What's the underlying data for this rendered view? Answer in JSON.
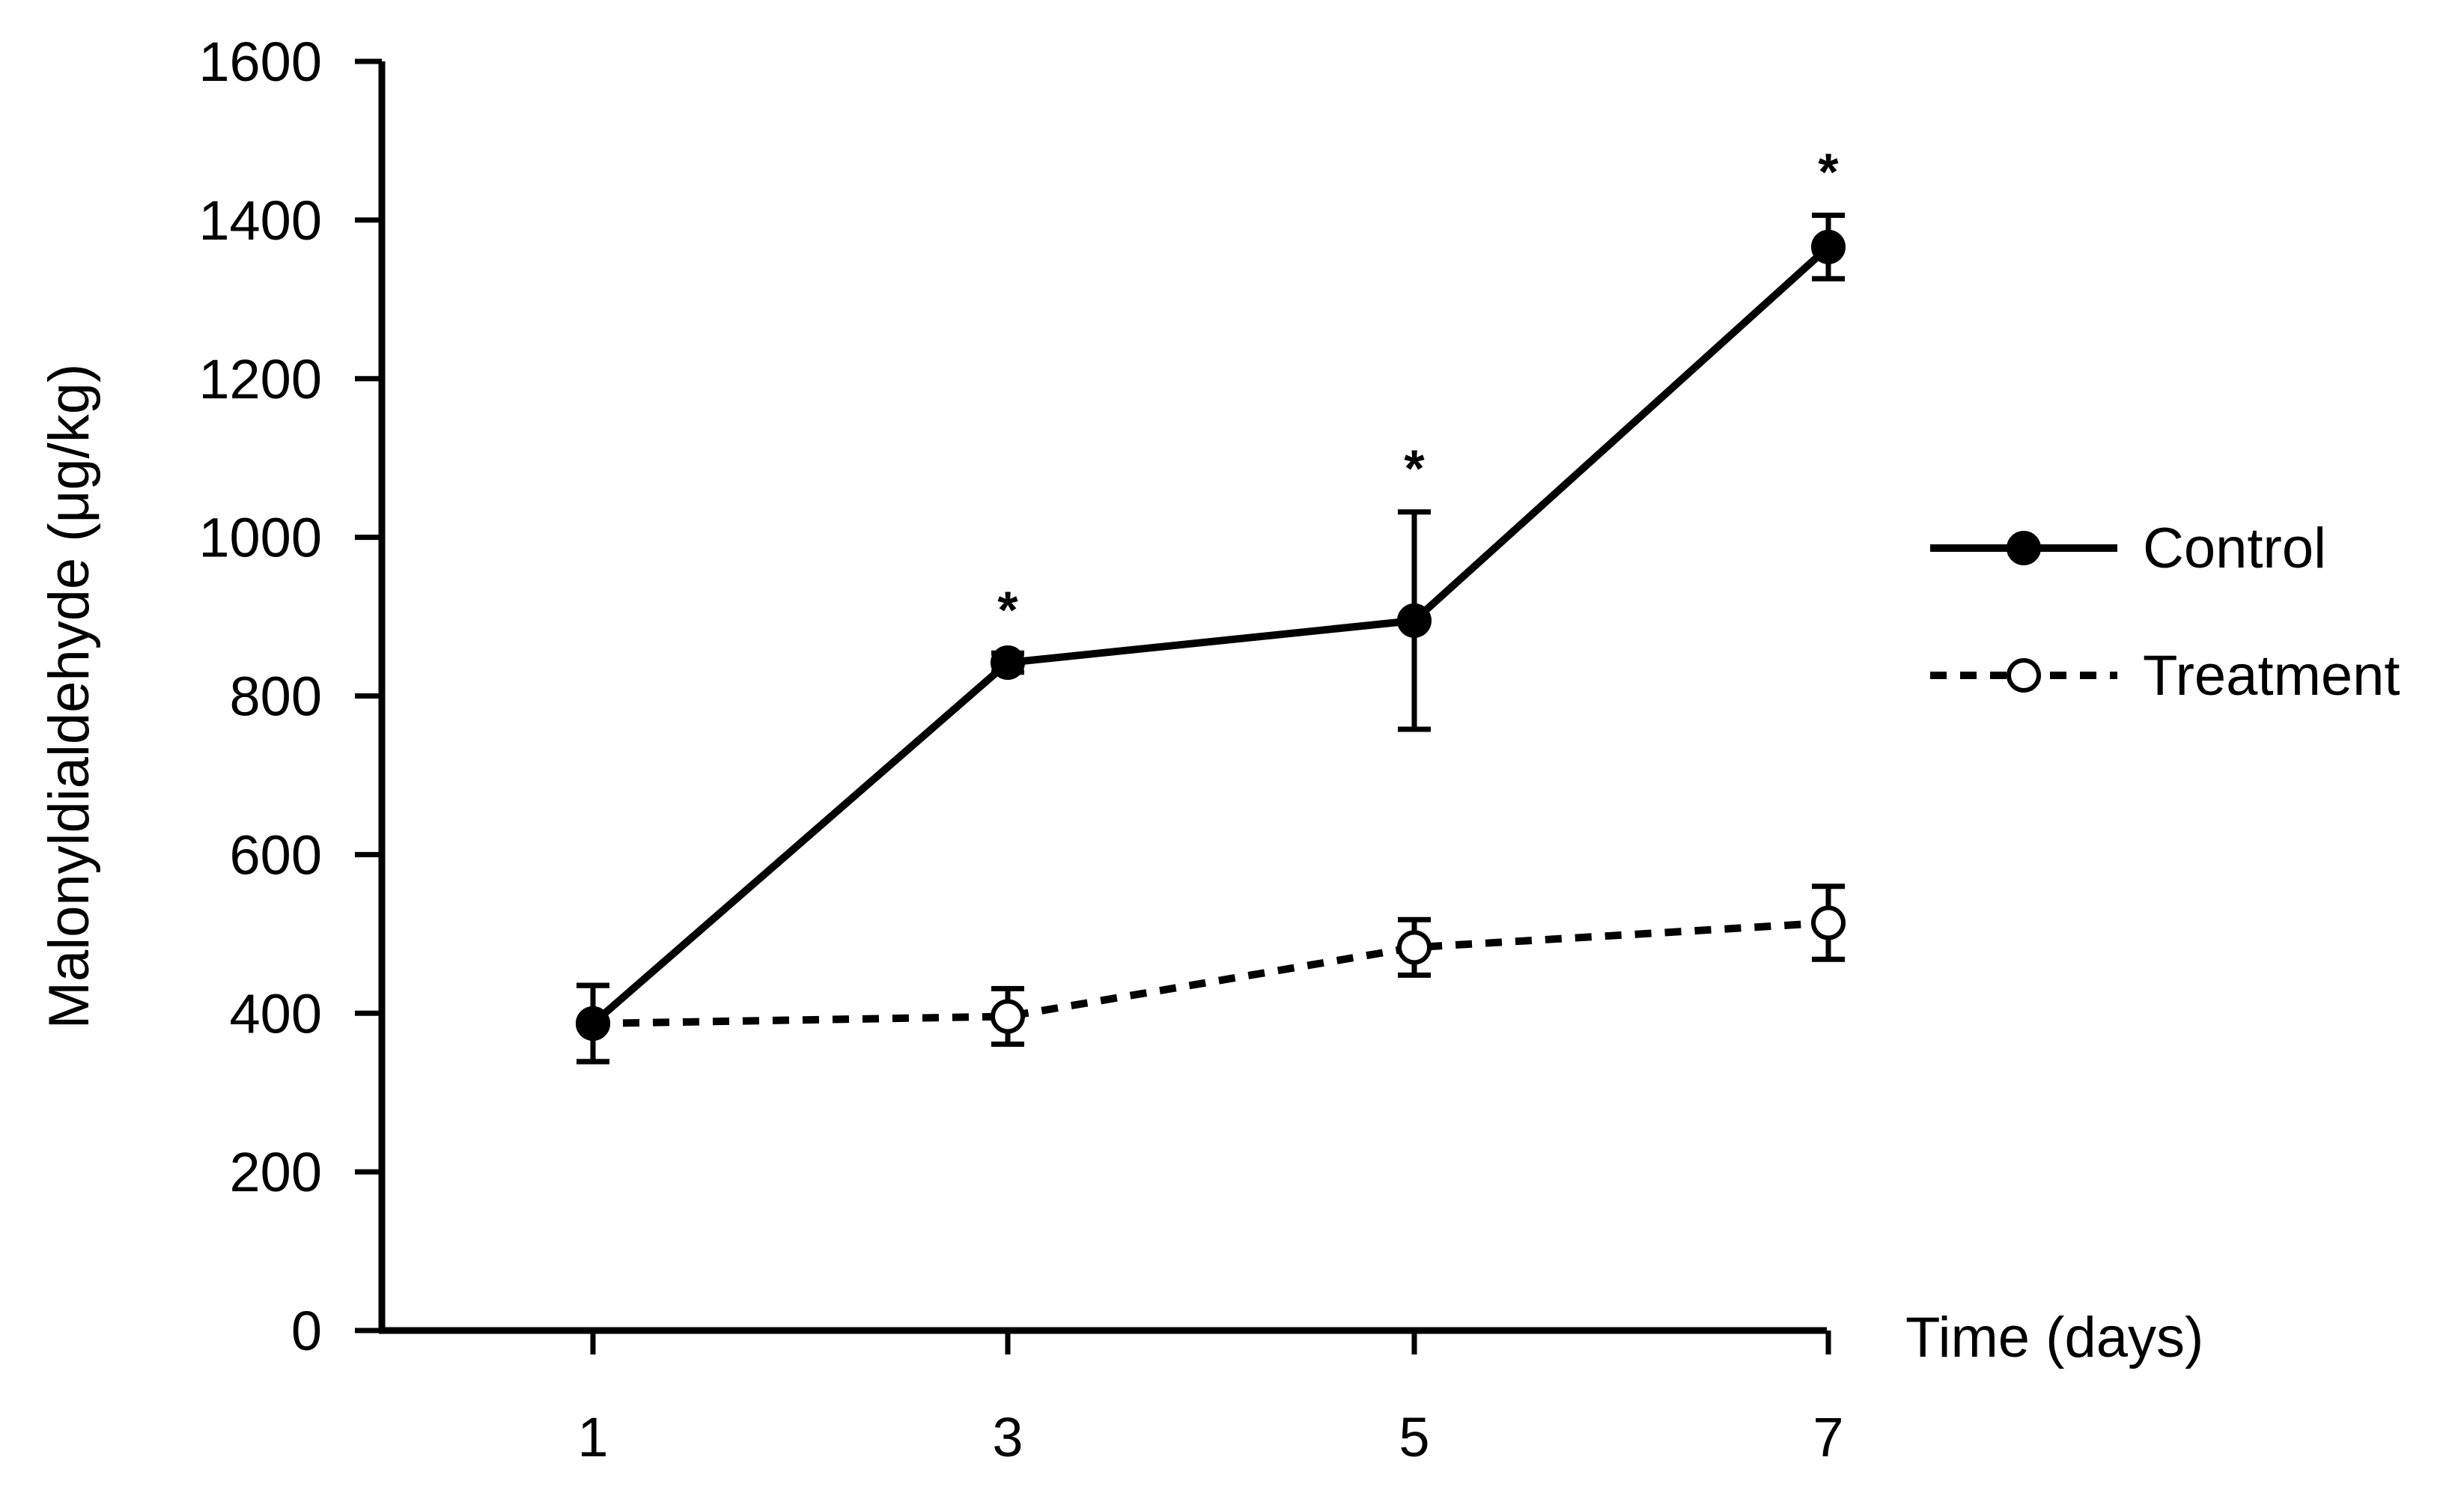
{
  "chart_data": {
    "type": "line",
    "title": "",
    "xlabel": "Time (days)",
    "ylabel": "Malonyldialdehyde (μg/kg)",
    "ylim": [
      0,
      1600
    ],
    "y_ticks": [
      "0",
      "200",
      "400",
      "600",
      "800",
      "1000",
      "1200",
      "1400",
      "1600"
    ],
    "x_ticks": [
      "1",
      "3",
      "5",
      "7"
    ],
    "x": [
      1,
      3,
      5,
      7
    ],
    "grid": false,
    "legend_placement": "right",
    "series": [
      {
        "name": "Control",
        "values": [
          387,
          842,
          895,
          1366
        ],
        "errors": [
          48,
          12,
          137,
          40
        ],
        "marker": "filled-circle",
        "line_style": "solid",
        "color": "#000000"
      },
      {
        "name": "Treatment",
        "values": [
          387,
          396,
          483,
          514
        ],
        "errors": [
          48,
          35,
          35,
          46
        ],
        "marker": "open-circle",
        "line_style": "dashed",
        "color": "#000000"
      }
    ],
    "annotations": [
      {
        "text": "*",
        "x": 3,
        "series": "Control"
      },
      {
        "text": "*",
        "x": 5,
        "series": "Control"
      },
      {
        "text": "*",
        "x": 7,
        "series": "Control"
      }
    ]
  }
}
